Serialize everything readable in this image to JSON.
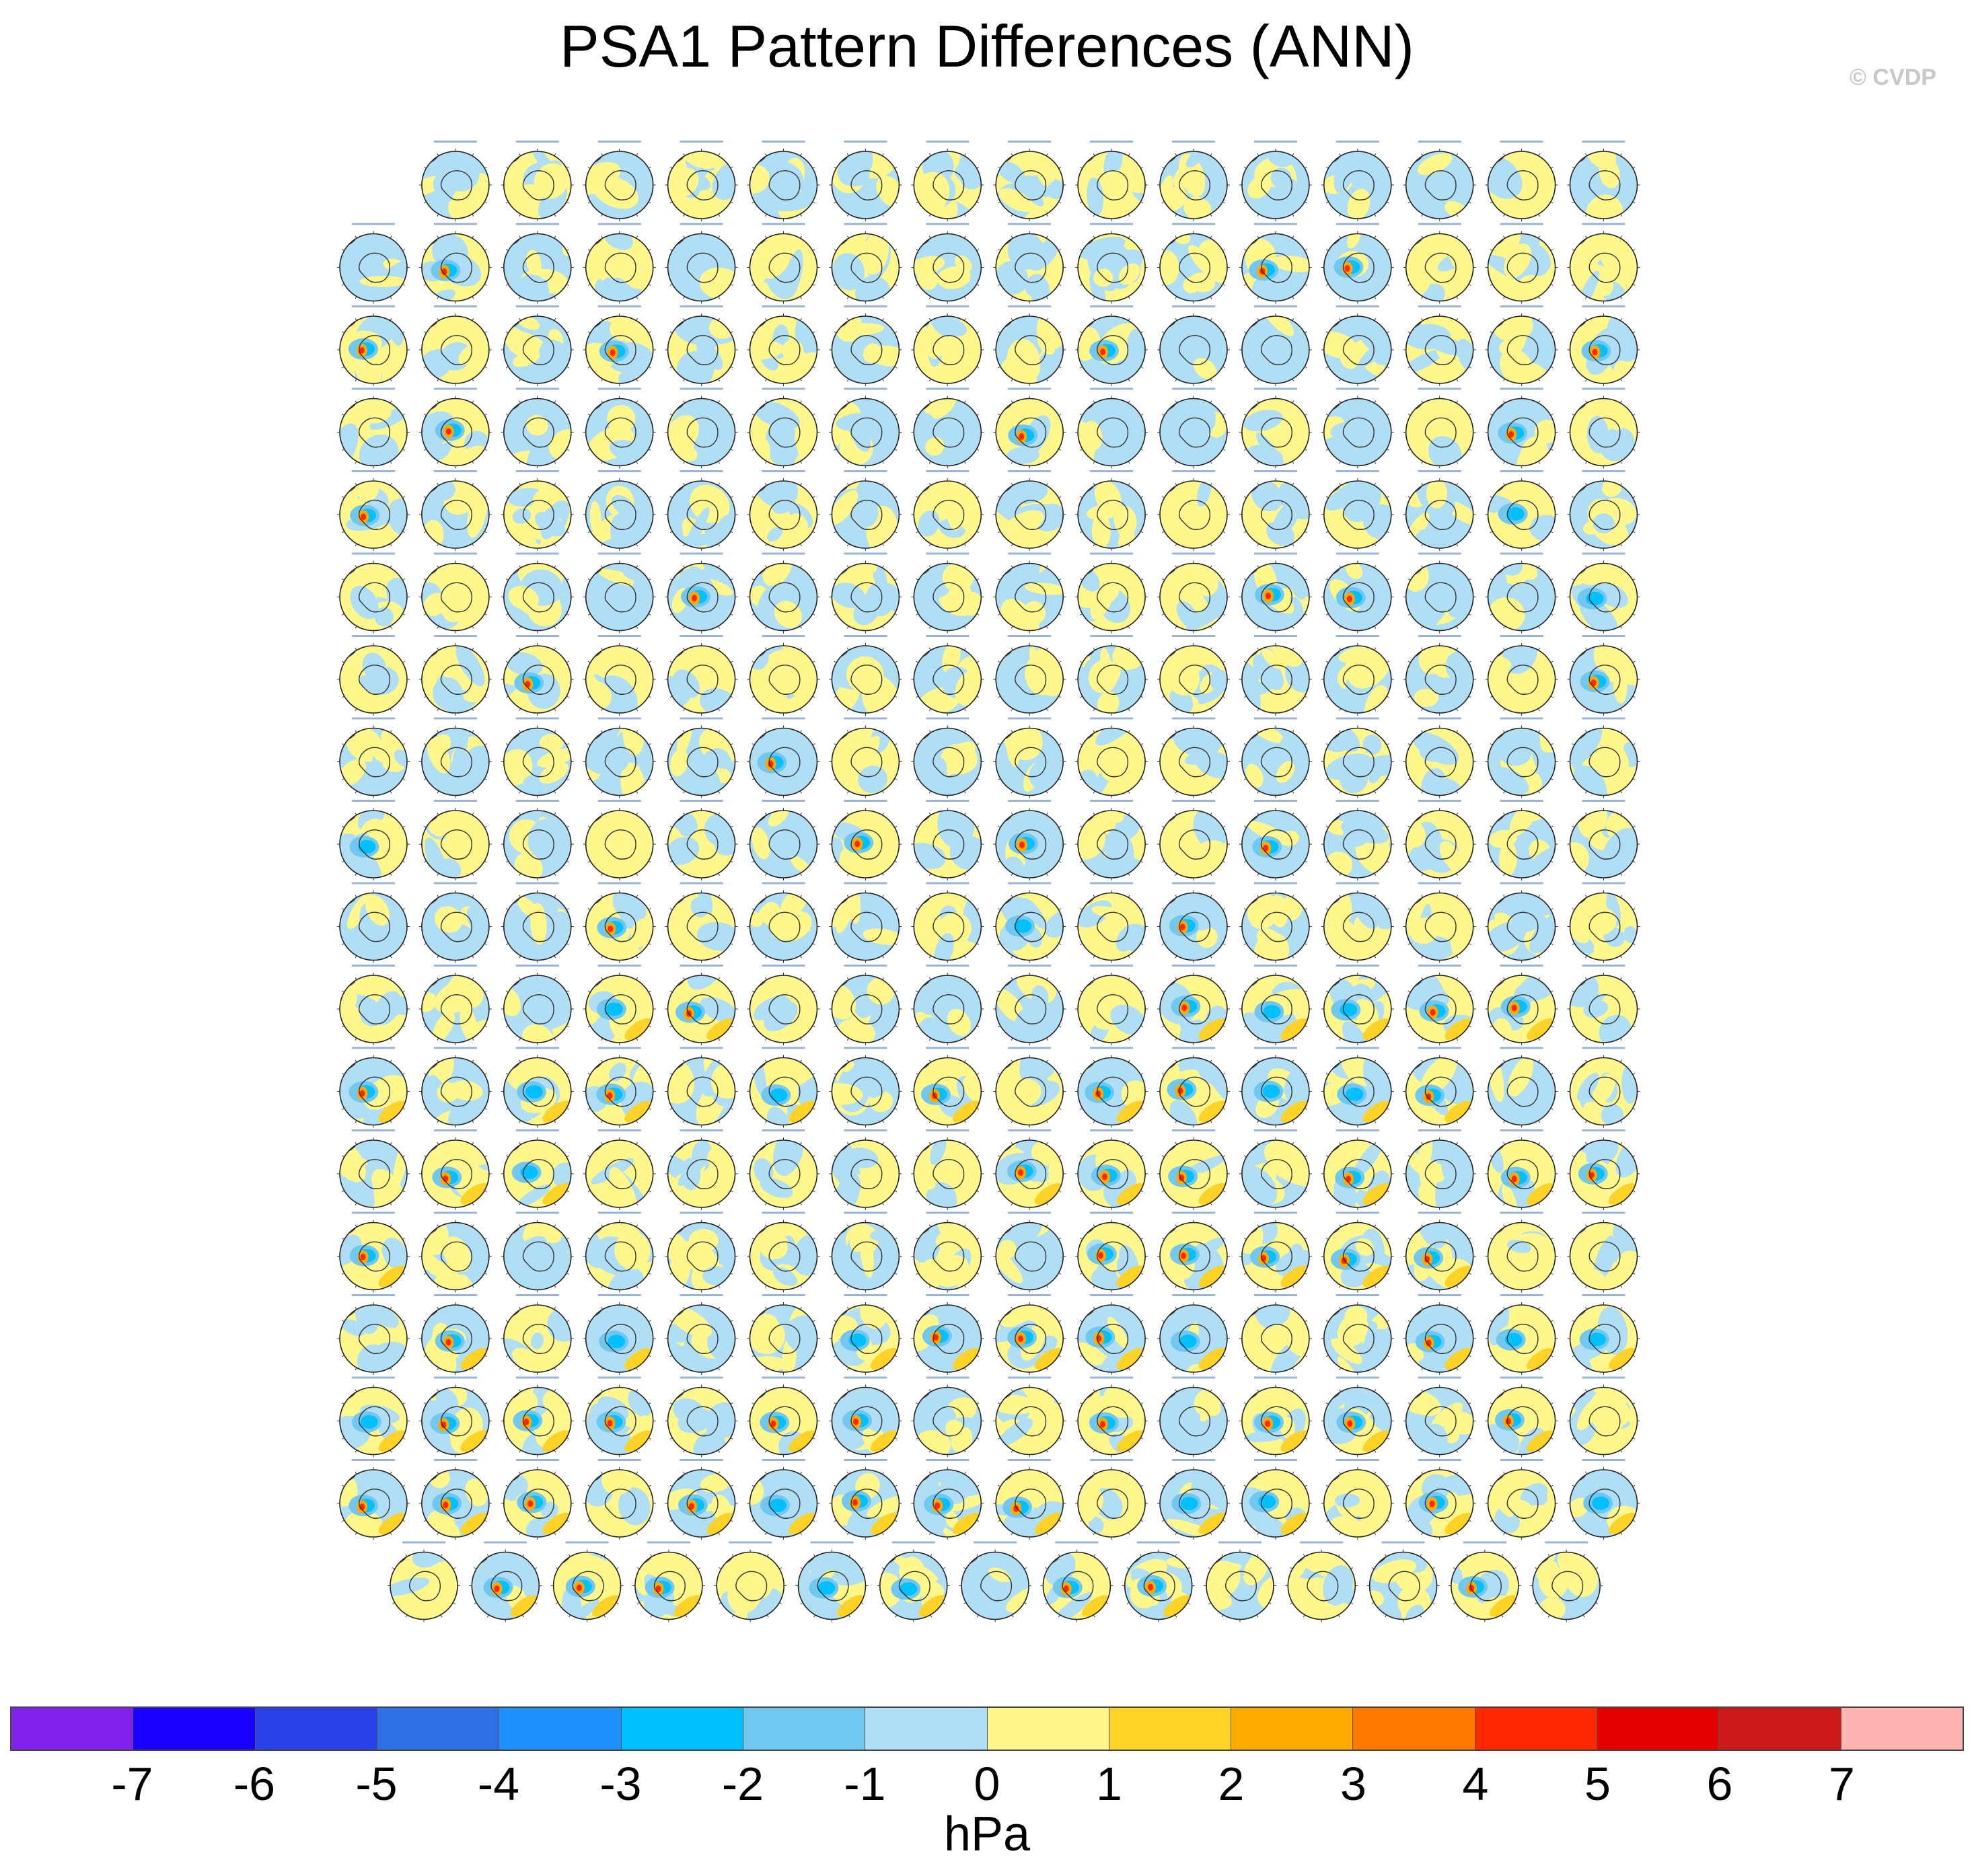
{
  "title": "PSA1 Pattern Differences (ANN)",
  "credit": "© CVDP",
  "chart_data": {
    "type": "heatmap",
    "title": "PSA1 Pattern Differences (ANN)",
    "panel_type": "south-polar-stereographic map",
    "rows": [
      15,
      16,
      16,
      16,
      16,
      16,
      16,
      16,
      16,
      16,
      16,
      16,
      16,
      16,
      16,
      16,
      16,
      15
    ],
    "total_panels": 286,
    "colorbar": {
      "units": "hPa",
      "tick_labels": [
        "-7",
        "-6",
        "-5",
        "-4",
        "-3",
        "-2",
        "-1",
        "0",
        "1",
        "2",
        "3",
        "4",
        "5",
        "6",
        "7"
      ],
      "levels": [
        -7,
        -6,
        -5,
        -4,
        -3,
        -2,
        -1,
        0,
        1,
        2,
        3,
        4,
        5,
        6,
        7
      ],
      "colors": [
        "#8220ec",
        "#1a00ff",
        "#2a40e8",
        "#2f6fe6",
        "#2090ff",
        "#00c0ff",
        "#70c8f0",
        "#b0def4",
        "#fff68c",
        "#ffd228",
        "#ffaa00",
        "#ff7800",
        "#ff2800",
        "#e40000",
        "#cc1a1a",
        "#ffb4b4"
      ]
    }
  }
}
